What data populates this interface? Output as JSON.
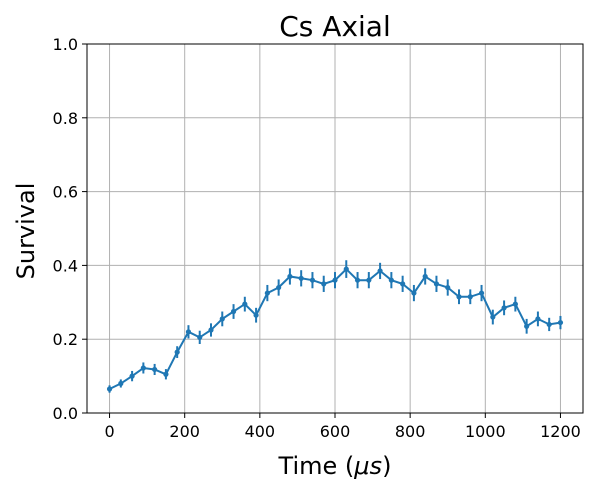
{
  "chart_data": {
    "type": "line",
    "title": "Cs Axial",
    "xlabel": "Time (",
    "xlabel_symbol": "μs",
    "xlabel_end": ")",
    "ylabel": "Survival",
    "xlim": [
      -60,
      1260
    ],
    "ylim": [
      0.0,
      1.0
    ],
    "xticks": [
      0,
      200,
      400,
      600,
      800,
      1000,
      1200
    ],
    "xtick_labels": [
      "0",
      "200",
      "400",
      "600",
      "800",
      "1000",
      "1200"
    ],
    "yticks": [
      0.0,
      0.2,
      0.4,
      0.6,
      0.8,
      1.0
    ],
    "ytick_labels": [
      "0.0",
      "0.2",
      "0.4",
      "0.6",
      "0.8",
      "1.0"
    ],
    "grid": true,
    "color": "#1f77b4",
    "series": [
      {
        "x": [
          0,
          30,
          60,
          90,
          120,
          150,
          180,
          210,
          240,
          270,
          300,
          330,
          360,
          390,
          420,
          450,
          480,
          510,
          540,
          570,
          600,
          630,
          660,
          690,
          720,
          750,
          780,
          810,
          840,
          870,
          900,
          930,
          960,
          990,
          1020,
          1050,
          1080,
          1110,
          1140,
          1170,
          1200
        ],
        "y": [
          0.065,
          0.08,
          0.1,
          0.122,
          0.118,
          0.105,
          0.165,
          0.22,
          0.205,
          0.225,
          0.255,
          0.275,
          0.295,
          0.265,
          0.325,
          0.34,
          0.37,
          0.365,
          0.36,
          0.35,
          0.36,
          0.39,
          0.36,
          0.36,
          0.385,
          0.36,
          0.35,
          0.325,
          0.37,
          0.35,
          0.34,
          0.315,
          0.315,
          0.325,
          0.26,
          0.285,
          0.295,
          0.235,
          0.255,
          0.24,
          0.245
        ],
        "err": [
          0.01,
          0.011,
          0.014,
          0.015,
          0.015,
          0.014,
          0.016,
          0.018,
          0.018,
          0.018,
          0.02,
          0.02,
          0.02,
          0.02,
          0.022,
          0.022,
          0.022,
          0.022,
          0.022,
          0.022,
          0.022,
          0.024,
          0.022,
          0.022,
          0.022,
          0.022,
          0.022,
          0.022,
          0.022,
          0.022,
          0.022,
          0.02,
          0.02,
          0.022,
          0.02,
          0.02,
          0.02,
          0.02,
          0.02,
          0.018,
          0.018
        ]
      }
    ]
  }
}
